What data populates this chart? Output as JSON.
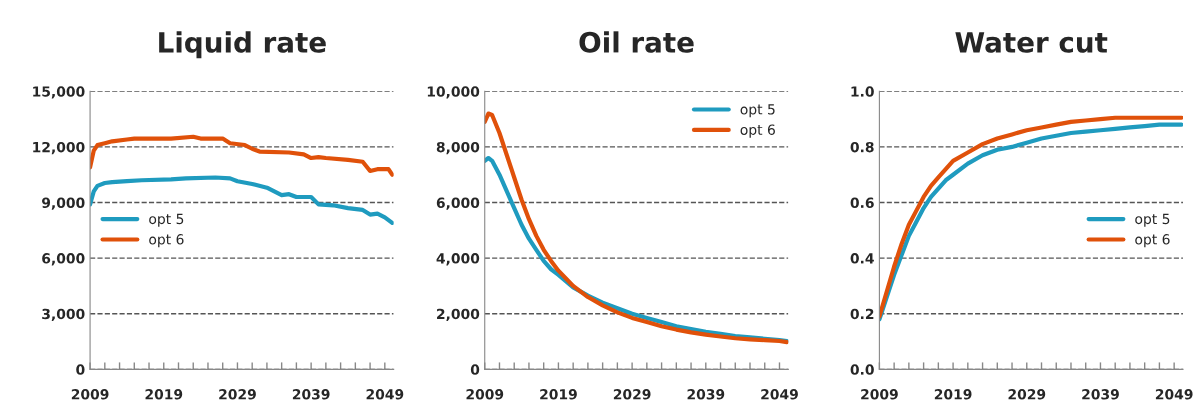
{
  "chart_data": [
    {
      "type": "line",
      "title": "Liquid rate",
      "xlim": [
        2009,
        2050.2
      ],
      "ylim": [
        0,
        15000
      ],
      "xticks": [
        2009,
        {
          "value": 2011,
          "label": null
        },
        {
          "value": 2013,
          "label": null
        },
        {
          "value": 2015,
          "label": null
        },
        {
          "value": 2017,
          "label": null
        },
        2019,
        {
          "value": 2021,
          "label": null
        },
        {
          "value": 2023,
          "label": null
        },
        {
          "value": 2025,
          "label": null
        },
        {
          "value": 2027,
          "label": null
        },
        2029,
        {
          "value": 2031,
          "label": null
        },
        {
          "value": 2033,
          "label": null
        },
        {
          "value": 2035,
          "label": null
        },
        {
          "value": 2037,
          "label": null
        },
        2039,
        {
          "value": 2041,
          "label": null
        },
        {
          "value": 2043,
          "label": null
        },
        {
          "value": 2045,
          "label": null
        },
        {
          "value": 2047,
          "label": null
        },
        2049
      ],
      "yticks": [
        0,
        {
          "value": 3000,
          "label": "3,000"
        },
        {
          "value": 6000,
          "label": "6,000"
        },
        {
          "value": 9000,
          "label": "9,000"
        },
        {
          "value": 12000,
          "label": "12,000"
        },
        {
          "value": 15000,
          "label": "15,000"
        }
      ],
      "grid": "y",
      "legend": "center left",
      "line_style": "solid",
      "series": [
        {
          "name": "opt 5",
          "color": "#1f9bbf",
          "x": [
            2009,
            2009.5,
            2010,
            2011,
            2012,
            2014,
            2016,
            2020,
            2022,
            2026,
            2028,
            2029,
            2031,
            2033,
            2034,
            2035,
            2036,
            2037,
            2039,
            2040,
            2042,
            2044,
            2046,
            2047,
            2048,
            2049,
            2050
          ],
          "values": [
            8900,
            9600,
            9900,
            10050,
            10100,
            10150,
            10200,
            10250,
            10300,
            10350,
            10300,
            10150,
            10000,
            9800,
            9600,
            9400,
            9450,
            9300,
            9300,
            8900,
            8850,
            8700,
            8600,
            8350,
            8400,
            8200,
            7900
          ]
        },
        {
          "name": "opt 6",
          "color": "#e0510a",
          "x": [
            2009,
            2009.5,
            2010,
            2011,
            2012,
            2014,
            2015,
            2020,
            2023,
            2024,
            2027,
            2028,
            2030,
            2031,
            2032,
            2036,
            2038,
            2039,
            2040,
            2041,
            2044,
            2046,
            2047,
            2048,
            2049.5,
            2050
          ],
          "values": [
            10900,
            11800,
            12100,
            12200,
            12300,
            12400,
            12450,
            12450,
            12550,
            12450,
            12450,
            12200,
            12100,
            11900,
            11750,
            11700,
            11600,
            11400,
            11450,
            11400,
            11300,
            11200,
            10700,
            10800,
            10800,
            10500
          ]
        }
      ]
    },
    {
      "type": "line",
      "title": "Oil rate",
      "xlim": [
        2009,
        2050.2
      ],
      "ylim": [
        0,
        10000
      ],
      "xticks": [
        2009,
        {
          "value": 2011,
          "label": null
        },
        {
          "value": 2013,
          "label": null
        },
        {
          "value": 2015,
          "label": null
        },
        {
          "value": 2017,
          "label": null
        },
        2019,
        {
          "value": 2021,
          "label": null
        },
        {
          "value": 2023,
          "label": null
        },
        {
          "value": 2025,
          "label": null
        },
        {
          "value": 2027,
          "label": null
        },
        2029,
        {
          "value": 2031,
          "label": null
        },
        {
          "value": 2033,
          "label": null
        },
        {
          "value": 2035,
          "label": null
        },
        {
          "value": 2037,
          "label": null
        },
        2039,
        {
          "value": 2041,
          "label": null
        },
        {
          "value": 2043,
          "label": null
        },
        {
          "value": 2045,
          "label": null
        },
        {
          "value": 2047,
          "label": null
        },
        2049
      ],
      "yticks": [
        0,
        {
          "value": 2000,
          "label": "2,000"
        },
        {
          "value": 4000,
          "label": "4,000"
        },
        {
          "value": 6000,
          "label": "6,000"
        },
        {
          "value": 8000,
          "label": "8,000"
        },
        {
          "value": 10000,
          "label": "10,000"
        }
      ],
      "grid": "y",
      "legend": "upper right",
      "line_style": "solid",
      "series": [
        {
          "name": "opt 5",
          "color": "#1f9bbf",
          "x": [
            2009,
            2009.5,
            2010,
            2011,
            2012,
            2013,
            2014,
            2015,
            2016,
            2017,
            2018,
            2019,
            2021,
            2023,
            2025,
            2027,
            2029,
            2031,
            2033,
            2035,
            2037,
            2039,
            2041,
            2043,
            2045,
            2047,
            2049,
            2050
          ],
          "values": [
            7500,
            7600,
            7500,
            7000,
            6400,
            5800,
            5200,
            4700,
            4300,
            3900,
            3600,
            3400,
            2950,
            2650,
            2400,
            2200,
            2000,
            1850,
            1700,
            1550,
            1450,
            1350,
            1280,
            1200,
            1150,
            1100,
            1050,
            1020
          ]
        },
        {
          "name": "opt 6",
          "color": "#e0510a",
          "x": [
            2009,
            2009.5,
            2010,
            2011,
            2012,
            2013,
            2014,
            2015,
            2016,
            2017,
            2018,
            2019,
            2021,
            2023,
            2025,
            2027,
            2029,
            2031,
            2033,
            2035,
            2037,
            2039,
            2041,
            2043,
            2045,
            2047,
            2049,
            2050
          ],
          "values": [
            8900,
            9200,
            9150,
            8500,
            7700,
            6900,
            6100,
            5400,
            4800,
            4300,
            3900,
            3550,
            3000,
            2600,
            2300,
            2050,
            1850,
            1700,
            1550,
            1430,
            1330,
            1250,
            1180,
            1120,
            1080,
            1050,
            1020,
            980
          ]
        }
      ]
    },
    {
      "type": "line",
      "title": "Water cut",
      "xlim": [
        2009,
        2050.2
      ],
      "ylim": [
        0,
        1.0
      ],
      "xticks": [
        2009,
        {
          "value": 2011,
          "label": null
        },
        {
          "value": 2013,
          "label": null
        },
        {
          "value": 2015,
          "label": null
        },
        {
          "value": 2017,
          "label": null
        },
        2019,
        {
          "value": 2021,
          "label": null
        },
        {
          "value": 2023,
          "label": null
        },
        {
          "value": 2025,
          "label": null
        },
        {
          "value": 2027,
          "label": null
        },
        2029,
        {
          "value": 2031,
          "label": null
        },
        {
          "value": 2033,
          "label": null
        },
        {
          "value": 2035,
          "label": null
        },
        {
          "value": 2037,
          "label": null
        },
        2039,
        {
          "value": 2041,
          "label": null
        },
        {
          "value": 2043,
          "label": null
        },
        {
          "value": 2045,
          "label": null
        },
        {
          "value": 2047,
          "label": null
        },
        2049
      ],
      "yticks": [
        {
          "value": 0,
          "label": "0.0"
        },
        0.2,
        0.4,
        0.6,
        0.8,
        {
          "value": 1,
          "label": "1.0"
        }
      ],
      "grid": "y",
      "legend": "center right",
      "line_style": "solid",
      "series": [
        {
          "name": "opt 5",
          "color": "#1f9bbf",
          "x": [
            2009,
            2010,
            2011,
            2012,
            2013,
            2014,
            2015,
            2016,
            2017,
            2018,
            2019,
            2021,
            2023,
            2025,
            2027,
            2029,
            2031,
            2033,
            2035,
            2037,
            2039,
            2041,
            2043,
            2045,
            2047,
            2050
          ],
          "values": [
            0.18,
            0.26,
            0.34,
            0.41,
            0.48,
            0.53,
            0.58,
            0.62,
            0.65,
            0.68,
            0.7,
            0.74,
            0.77,
            0.79,
            0.8,
            0.815,
            0.83,
            0.84,
            0.85,
            0.855,
            0.86,
            0.865,
            0.87,
            0.875,
            0.88,
            0.88
          ]
        },
        {
          "name": "opt 6",
          "color": "#e0510a",
          "x": [
            2009,
            2010,
            2011,
            2012,
            2013,
            2014,
            2015,
            2016,
            2017,
            2018,
            2019,
            2021,
            2023,
            2025,
            2027,
            2029,
            2031,
            2033,
            2035,
            2037,
            2039,
            2041,
            2043,
            2045,
            2047,
            2050
          ],
          "values": [
            0.19,
            0.28,
            0.37,
            0.45,
            0.52,
            0.57,
            0.62,
            0.66,
            0.69,
            0.72,
            0.75,
            0.78,
            0.81,
            0.83,
            0.845,
            0.86,
            0.87,
            0.88,
            0.89,
            0.895,
            0.9,
            0.905,
            0.905,
            0.905,
            0.905,
            0.905
          ]
        }
      ]
    }
  ]
}
